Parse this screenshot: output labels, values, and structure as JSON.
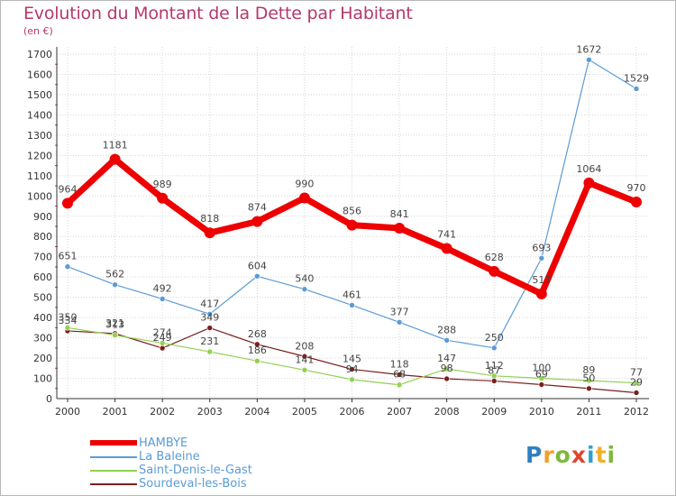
{
  "title": "Evolution du Montant de la Dette par Habitant",
  "unit_label": "(en €)",
  "logo": {
    "text": "Proxiti",
    "letters": [
      {
        "ch": "P",
        "color": "#2f7fc1"
      },
      {
        "ch": "r",
        "color": "#f0a02a"
      },
      {
        "ch": "o",
        "color": "#7fb83a"
      },
      {
        "ch": "x",
        "color": "#e0452e"
      },
      {
        "ch": "i",
        "color": "#2f9fd1"
      },
      {
        "ch": "t",
        "color": "#f0b02a"
      },
      {
        "ch": "i",
        "color": "#7fb83a"
      }
    ]
  },
  "chart_data": {
    "type": "line",
    "title": "Evolution du Montant de la Dette par Habitant",
    "ylabel": "(en €)",
    "x": [
      "2000",
      "2001",
      "2002",
      "2003",
      "2004",
      "2005",
      "2006",
      "2007",
      "2008",
      "2009",
      "2010",
      "2011",
      "2012"
    ],
    "ylim": [
      0,
      1700
    ],
    "yticks": [
      0,
      100,
      200,
      300,
      400,
      500,
      600,
      700,
      800,
      900,
      1000,
      1100,
      1200,
      1300,
      1400,
      1500,
      1600,
      1700
    ],
    "grid": true,
    "legend": "bottom-left",
    "series": [
      {
        "name": "HAMBYE",
        "color": "#ee0000",
        "values": [
          964,
          1181,
          989,
          818,
          874,
          990,
          856,
          841,
          741,
          628,
          517,
          1064,
          970
        ]
      },
      {
        "name": "La Baleine",
        "color": "#5b9bd5",
        "values": [
          651,
          562,
          492,
          417,
          604,
          540,
          461,
          377,
          288,
          250,
          693,
          1672,
          1529
        ]
      },
      {
        "name": "Saint-Denis-le-Gast",
        "color": "#92d050",
        "values": [
          350,
          313,
          274,
          231,
          186,
          141,
          94,
          68,
          147,
          112,
          100,
          89,
          77
        ]
      },
      {
        "name": "Sourdeval-les-Bois",
        "color": "#7b1e1e",
        "values": [
          334,
          321,
          249,
          349,
          268,
          208,
          145,
          118,
          98,
          87,
          69,
          50,
          29
        ]
      }
    ]
  }
}
